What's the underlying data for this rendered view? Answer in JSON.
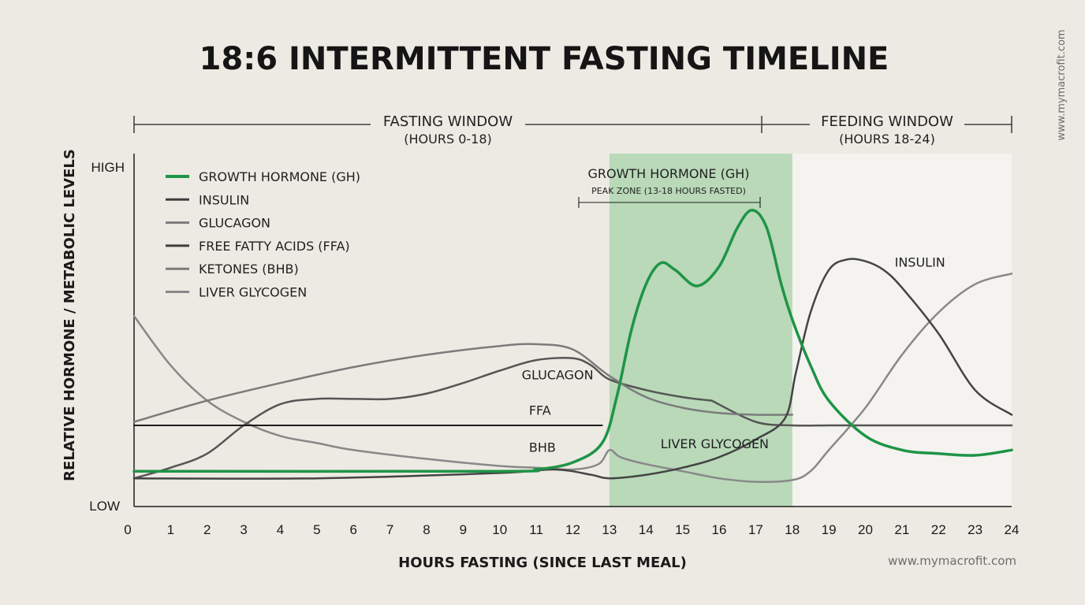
{
  "chart_data": {
    "type": "line",
    "title": "18:6 INTERMITTENT FASTING TIMELINE",
    "xlabel": "HOURS FASTING (SINCE LAST MEAL)",
    "ylabel": "RELATIVE HORMONE / METABOLIC LEVELS",
    "y_high_label": "HIGH",
    "y_low_label": "LOW",
    "xlim": [
      0,
      24
    ],
    "ylim": [
      0,
      100
    ],
    "x_ticks": [
      "0",
      "1",
      "2",
      "3",
      "4",
      "5",
      "6",
      "7",
      "8",
      "9",
      "10",
      "11",
      "12",
      "13",
      "14",
      "15",
      "16",
      "17",
      "18",
      "19",
      "20",
      "21",
      "22",
      "23",
      "24"
    ],
    "legend_position": "top-left",
    "legend": [
      {
        "label": "GROWTH HORMONE (GH)",
        "color": "#1e9447"
      },
      {
        "label": "INSULIN",
        "color": "#3d3d3d"
      },
      {
        "label": "GLUCAGON",
        "color": "#7b7b7b"
      },
      {
        "label": "FREE FATTY ACIDS (FFA)",
        "color": "#3d3d3d"
      },
      {
        "label": "KETONES (BHB)",
        "color": "#7b7b7b"
      },
      {
        "label": "LIVER GLYCOGEN",
        "color": "#888888"
      }
    ],
    "windows": [
      {
        "label": "FASTING WINDOW",
        "sublabel": "(HOURS 0-18)",
        "x_start": 0,
        "x_end": 18
      },
      {
        "label": "FEEDING WINDOW",
        "sublabel": "(HOURS 18-24)",
        "x_start": 18,
        "x_end": 24
      }
    ],
    "peak_zone": {
      "label": "GROWTH HORMONE (GH)",
      "sublabel": "PEAK ZONE (13-18 HOURS FASTED)",
      "x_start": 13,
      "x_end": 18,
      "color": "#b9d9b8"
    },
    "feeding_region_color": "#f4f3ef",
    "series": [
      {
        "name": "GROWTH HORMONE (GH)",
        "color": "#1e9447",
        "width": 3.5,
        "x": [
          0,
          10,
          11,
          12,
          12.8,
          13.2,
          13.6,
          14,
          14.4,
          14.8,
          15.4,
          16,
          16.5,
          16.9,
          17.3,
          17.7,
          18,
          18.5,
          19,
          20,
          21,
          22,
          23,
          24
        ],
        "y": [
          10,
          10,
          10.5,
          12.5,
          18,
          31,
          50,
          63,
          69,
          67,
          62.5,
          68,
          79,
          84,
          79,
          63,
          53,
          40,
          30,
          20,
          16,
          15,
          14.5,
          16
        ]
      },
      {
        "name": "INSULIN",
        "color": "#444444",
        "width": 2.5,
        "x": [
          0,
          5,
          10,
          11.5,
          12.5,
          13,
          14,
          15,
          16,
          17,
          17.8,
          18.1,
          18.5,
          19,
          19.5,
          20,
          20.5,
          21,
          22,
          23,
          24
        ],
        "y": [
          8,
          8,
          9.5,
          10.5,
          9,
          8,
          9,
          11,
          14,
          19,
          25,
          38,
          55,
          67,
          70,
          69.5,
          67,
          62,
          49,
          33,
          26
        ]
      },
      {
        "name": "GLUCAGON",
        "color": "#7b7b7b",
        "width": 2.5,
        "x": [
          0,
          2,
          4,
          6,
          8,
          10,
          11,
          12,
          13,
          14,
          15,
          16,
          17,
          18
        ],
        "y": [
          24,
          30,
          35,
          39.5,
          43,
          45.5,
          46,
          44.5,
          37,
          31,
          28,
          26.5,
          26,
          26
        ]
      },
      {
        "name": "FREE FATTY ACIDS (FFA)",
        "color": "#1c1c1c",
        "width": 2,
        "x": [
          0,
          12.8
        ],
        "y": [
          23,
          23
        ]
      },
      {
        "name": "KETONES (BHB)",
        "color": "#555555",
        "width": 2.5,
        "x": [
          0,
          1,
          2,
          3,
          4,
          5,
          6,
          7,
          8,
          9,
          10,
          11,
          12,
          12.5,
          13,
          14,
          15,
          15.8
        ],
        "y": [
          8,
          11,
          15,
          23,
          29,
          30.5,
          30.5,
          30.5,
          32,
          35,
          38.5,
          41.5,
          42,
          40,
          36,
          33,
          31,
          30
        ],
        "x2": [
          15.8,
          17,
          18,
          19,
          20,
          21,
          22,
          23,
          24
        ],
        "y2": [
          30,
          24,
          23,
          23,
          23,
          23,
          23,
          23,
          23
        ]
      },
      {
        "name": "LIVER GLYCOGEN",
        "color": "#888888",
        "width": 2.5,
        "x": [
          0,
          1,
          2,
          3,
          4,
          5,
          6,
          8,
          10,
          11,
          12,
          12.7,
          13,
          13.3,
          14,
          15,
          16,
          17,
          18,
          18.5,
          19,
          20,
          21,
          22,
          23,
          24
        ],
        "y": [
          54,
          40,
          30,
          24,
          20,
          18,
          16,
          13.5,
          11.5,
          11,
          10.5,
          12,
          16,
          14,
          12,
          10,
          8,
          7,
          7.5,
          10,
          16,
          28,
          43,
          55,
          63,
          66
        ]
      }
    ],
    "annotations": [
      {
        "text": "INSULIN",
        "x": 20.8,
        "y": 68
      },
      {
        "text": "GLUCAGON",
        "x": 10.6,
        "y": 36
      },
      {
        "text": "FFA",
        "x": 10.8,
        "y": 26
      },
      {
        "text": "BHB",
        "x": 10.8,
        "y": 15.5
      },
      {
        "text": "LIVER GLYCOGEN",
        "x": 14.4,
        "y": 16.5
      }
    ]
  },
  "watermark_side": "www.mymacrofit.com",
  "watermark_bottom": "www.mymacrofit.com"
}
